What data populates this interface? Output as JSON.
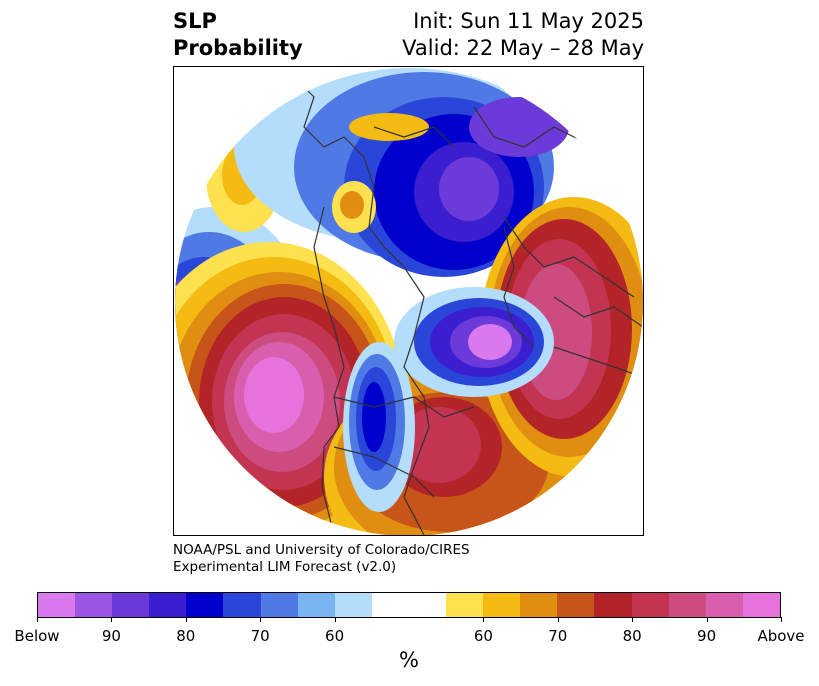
{
  "title": {
    "left_line1": "SLP",
    "left_line2": "Probability",
    "right_line1": "Init: Sun 11 May 2025",
    "right_line2": "Valid: 22 May – 28 May"
  },
  "credit": {
    "line1": "NOAA/PSL and University of Colorado/CIRES",
    "line2": "Experimental LIM Forecast (v2.0)"
  },
  "map": {
    "projection": "north-polar-stereographic",
    "content": "sea-level pressure probability shading with coastlines and borders"
  },
  "colorbar": {
    "unit_label": "%",
    "tick_labels": [
      "Below",
      "90",
      "80",
      "70",
      "60",
      "60",
      "70",
      "80",
      "90",
      "Above"
    ],
    "colors": {
      "below": [
        "#d879ee",
        "#9b57e3",
        "#6b3ad8",
        "#3a1ed0",
        "#0000cc",
        "#2a46d8",
        "#4f7ae6",
        "#78b4f2",
        "#b3ddfb"
      ],
      "neutral": "#ffffff",
      "above": [
        "#fde14e",
        "#f4bb12",
        "#e08e12",
        "#c75418",
        "#b32428",
        "#c23452",
        "#cc4c80",
        "#d95eae",
        "#e673db"
      ]
    }
  }
}
